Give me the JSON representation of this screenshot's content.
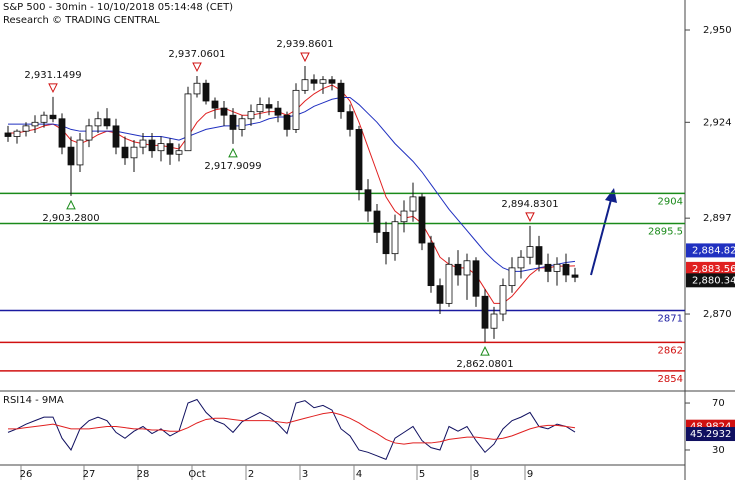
{
  "chart_data": {
    "type": "candlestick",
    "title": "S&P 500 - 30min - 10/10/2018 05:14:48 (CET)",
    "subtitle": "Research © TRADING CENTRAL",
    "categories": [
      null,
      null,
      "26",
      null,
      null,
      null,
      null,
      null,
      null,
      "27",
      null,
      null,
      null,
      null,
      null,
      "28",
      null,
      null,
      null,
      null,
      null,
      "Oct",
      null,
      null,
      null,
      null,
      null,
      "2",
      null,
      null,
      null,
      null,
      null,
      "3",
      null,
      null,
      null,
      null,
      null,
      "4",
      null,
      null,
      null,
      null,
      null,
      null,
      "5",
      null,
      null,
      null,
      null,
      null,
      "8",
      null,
      null,
      null,
      null,
      null,
      "9",
      null,
      null,
      null,
      null,
      null
    ],
    "ohlc": [
      [
        2921,
        2923,
        2918.5,
        2920
      ],
      [
        2920,
        2922,
        2918,
        2921.5
      ],
      [
        2921.5,
        2924,
        2920,
        2923
      ],
      [
        2923,
        2926,
        2921,
        2924
      ],
      [
        2924,
        2927,
        2922.5,
        2926
      ],
      [
        2926,
        2931.1499,
        2924,
        2925
      ],
      [
        2925,
        2926.5,
        2915,
        2917
      ],
      [
        2917,
        2920,
        2903.28,
        2912
      ],
      [
        2912,
        2921,
        2910,
        2919
      ],
      [
        2919,
        2925,
        2917,
        2923
      ],
      [
        2923,
        2927,
        2921,
        2925
      ],
      [
        2925,
        2928,
        2922,
        2923
      ],
      [
        2923,
        2925,
        2915,
        2917
      ],
      [
        2917,
        2920,
        2912,
        2914
      ],
      [
        2914,
        2919,
        2910,
        2917
      ],
      [
        2917,
        2921,
        2915,
        2919
      ],
      [
        2919,
        2921,
        2914,
        2916
      ],
      [
        2916,
        2920,
        2913,
        2918
      ],
      [
        2918,
        2919.5,
        2912,
        2915
      ],
      [
        2915,
        2918,
        2913,
        2916
      ],
      [
        2916,
        2934,
        2916,
        2932
      ],
      [
        2932,
        2937.0601,
        2931,
        2935
      ],
      [
        2935,
        2936,
        2929,
        2930
      ],
      [
        2930,
        2931,
        2925,
        2928
      ],
      [
        2928,
        2930,
        2923,
        2926
      ],
      [
        2926,
        2928,
        2917.9099,
        2922
      ],
      [
        2922,
        2926,
        2920,
        2925
      ],
      [
        2925,
        2929,
        2923,
        2927
      ],
      [
        2927,
        2931,
        2925,
        2929
      ],
      [
        2929,
        2931,
        2926,
        2928
      ],
      [
        2928,
        2930,
        2924,
        2926
      ],
      [
        2926,
        2927,
        2920,
        2922
      ],
      [
        2922,
        2935,
        2921,
        2933
      ],
      [
        2933,
        2939.8601,
        2932,
        2936
      ],
      [
        2936,
        2937.5,
        2933,
        2935
      ],
      [
        2935,
        2937,
        2932,
        2936
      ],
      [
        2936,
        2937,
        2933,
        2935
      ],
      [
        2935,
        2936,
        2925,
        2927
      ],
      [
        2927,
        2929,
        2920,
        2922
      ],
      [
        2922,
        2923,
        2902,
        2905
      ],
      [
        2905,
        2908,
        2896,
        2899
      ],
      [
        2899,
        2901,
        2890,
        2893
      ],
      [
        2893,
        2896,
        2884,
        2887
      ],
      [
        2887,
        2898,
        2885,
        2896
      ],
      [
        2896,
        2902,
        2893,
        2899
      ],
      [
        2899,
        2907,
        2896,
        2903
      ],
      [
        2903,
        2904,
        2888,
        2890
      ],
      [
        2890,
        2892,
        2876,
        2878
      ],
      [
        2878,
        2880,
        2870,
        2873
      ],
      [
        2873,
        2886,
        2872,
        2884
      ],
      [
        2884,
        2888,
        2878,
        2881
      ],
      [
        2881,
        2887,
        2874,
        2885
      ],
      [
        2885,
        2886,
        2872,
        2875
      ],
      [
        2875,
        2877,
        2862.0801,
        2866
      ],
      [
        2866,
        2872,
        2863,
        2870
      ],
      [
        2870,
        2880,
        2868,
        2878
      ],
      [
        2878,
        2886,
        2876,
        2883
      ],
      [
        2883,
        2888,
        2880,
        2886
      ],
      [
        2886,
        2894.8301,
        2884,
        2889
      ],
      [
        2889,
        2892,
        2882,
        2884
      ],
      [
        2884,
        2887,
        2879,
        2882
      ],
      [
        2882,
        2886,
        2878,
        2884
      ],
      [
        2884,
        2887,
        2879,
        2881
      ],
      [
        2881,
        2883,
        2879,
        2880.34
      ]
    ],
    "close_label": "2,880.34",
    "series": [
      {
        "color": "#e02020",
        "value_label": "2,883.56",
        "values": [
          2921,
          2921,
          2921.5,
          2922,
          2923,
          2923.5,
          2922,
          2919,
          2918,
          2919,
          2920.5,
          2921.5,
          2921,
          2919.5,
          2918.5,
          2918,
          2917.5,
          2917.5,
          2917,
          2916.5,
          2920,
          2924,
          2926.5,
          2927.5,
          2928,
          2927,
          2926,
          2926,
          2926.5,
          2927,
          2927,
          2926,
          2927.5,
          2930,
          2932,
          2933.5,
          2934.5,
          2933,
          2930,
          2924,
          2917,
          2910,
          2903,
          2899,
          2897,
          2897.5,
          2895.5,
          2891,
          2886,
          2884,
          2883,
          2883,
          2881,
          2877,
          2873,
          2873,
          2875,
          2878,
          2881,
          2883,
          2883,
          2883.5,
          2883.5,
          2883.56
        ]
      },
      {
        "color": "#2030c0",
        "value_label": "2,884.82",
        "values": [
          2923.5,
          2923.5,
          2923.5,
          2923.5,
          2923.5,
          2923.5,
          2923,
          2922,
          2921.5,
          2921.5,
          2921.5,
          2921.5,
          2921.5,
          2921,
          2920.5,
          2920,
          2920,
          2920,
          2919.5,
          2919,
          2920,
          2921,
          2922,
          2922.5,
          2923,
          2923,
          2923,
          2923.5,
          2924,
          2925,
          2925.5,
          2925.5,
          2926,
          2927,
          2928.5,
          2929.5,
          2930.5,
          2931,
          2931,
          2929,
          2926.5,
          2924,
          2921,
          2918,
          2915.5,
          2913,
          2910,
          2906.5,
          2903,
          2899.5,
          2896.5,
          2893.5,
          2890.5,
          2887.5,
          2885,
          2883,
          2882,
          2882,
          2882.5,
          2883,
          2883.5,
          2884,
          2884.5,
          2884.82
        ]
      }
    ],
    "ylim": [
      2848.6,
      2958.45
    ],
    "yticks": [
      {
        "value": 2950,
        "label": "2,950"
      },
      {
        "value": 2924,
        "label": "2,924"
      },
      {
        "value": 2897,
        "label": "2,897"
      },
      {
        "value": 2870,
        "label": "2,870"
      }
    ],
    "levels": [
      {
        "value": 2904,
        "color": "#1a8a1a"
      },
      {
        "value": 2895.5,
        "color": "#1a8a1a"
      },
      {
        "value": 2871,
        "color": "#1a1aa0"
      },
      {
        "value": 2862,
        "color": "#d01010"
      },
      {
        "value": 2854,
        "color": "#d01010"
      }
    ],
    "annotations": [
      {
        "value": 2931.1499,
        "label": "2,931.1499"
      },
      {
        "value": 2903.28,
        "label": "2,903.2800"
      },
      {
        "value": 2937.0601,
        "label": "2,937.0601"
      },
      {
        "value": 2917.9099,
        "label": "2,917.9099"
      },
      {
        "value": 2939.8601,
        "label": "2,939.8601"
      },
      {
        "value": 2894.8301,
        "label": "2,894.8301"
      },
      {
        "value": 2862.0801,
        "label": "2,862.0801"
      }
    ],
    "indicator": {
      "title": "RSI14 - 9MA",
      "ylim": [
        17.2,
        79.4
      ],
      "yticks": [
        70,
        30
      ],
      "series": [
        {
          "color": "#101060",
          "value_label": "45.2932",
          "values": [
            45,
            48,
            52,
            55,
            58,
            58,
            40,
            30,
            48,
            55,
            58,
            55,
            45,
            40,
            46,
            50,
            44,
            48,
            42,
            46,
            70,
            73,
            62,
            55,
            52,
            45,
            54,
            58,
            62,
            58,
            52,
            44,
            70,
            72,
            66,
            68,
            64,
            48,
            42,
            30,
            28,
            25,
            22,
            40,
            45,
            50,
            38,
            32,
            30,
            50,
            46,
            50,
            38,
            28,
            35,
            48,
            55,
            58,
            62,
            50,
            48,
            52,
            50,
            45.2932
          ]
        },
        {
          "color": "#e02020",
          "value_label": "48.9824",
          "values": [
            48,
            48,
            49,
            50,
            51,
            52,
            50,
            48,
            48,
            48,
            49,
            50,
            50,
            49,
            48,
            48,
            47,
            47,
            46,
            46,
            49,
            53,
            56,
            57,
            57,
            56,
            55,
            55,
            55,
            55,
            54,
            53,
            55,
            57,
            59,
            61,
            62,
            60,
            57,
            53,
            48,
            44,
            39,
            36,
            35,
            36,
            36,
            36,
            37,
            39,
            40,
            41,
            41,
            40,
            39,
            40,
            42,
            45,
            48,
            50,
            51,
            51,
            50,
            48.9824
          ]
        }
      ]
    }
  }
}
